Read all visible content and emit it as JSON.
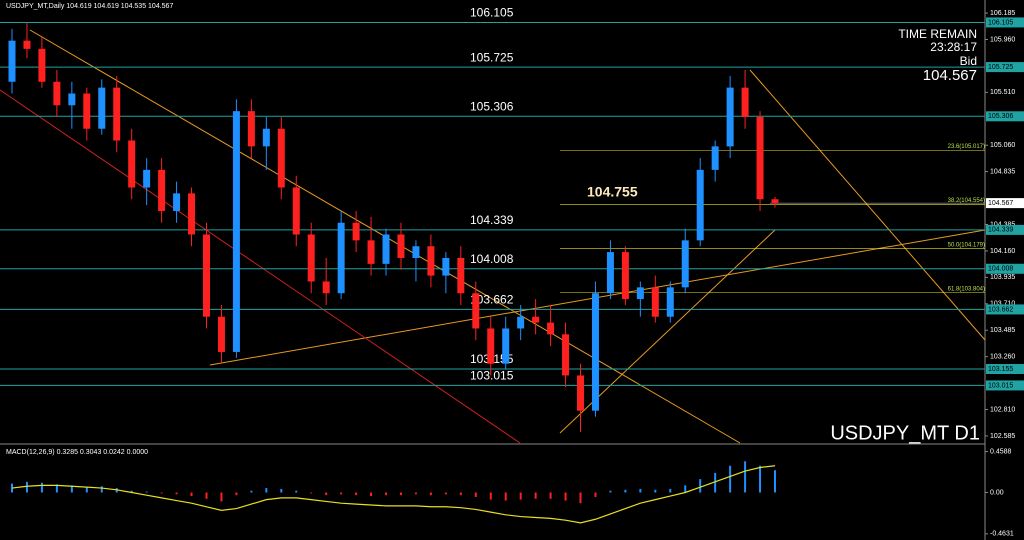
{
  "chart_data": {
    "type": "candlestick",
    "title": "USDJPY_MT,Daily  104.619 104.619 104.535 104.567",
    "symbol_label": "USDJPY_MT D1",
    "time_remain_label": "TIME REMAIN",
    "time_remain": "23:28:17",
    "bid_label": "Bid",
    "bid": 104.567,
    "up_color": "#1e90ff",
    "down_color": "#ff2020",
    "level_color": "#1fa3a3",
    "ylim": [
      102.525,
      106.296
    ],
    "yticks": [
      {
        "value": 106.185,
        "label": "106.185"
      },
      {
        "value": 105.96,
        "label": "105.960"
      },
      {
        "value": 105.51,
        "label": "105.510"
      },
      {
        "value": 105.06,
        "label": "105.060"
      },
      {
        "value": 104.835,
        "label": "104.835"
      },
      {
        "value": 104.385,
        "label": "104.385"
      },
      {
        "value": 104.16,
        "label": "104.160"
      },
      {
        "value": 103.935,
        "label": "103.935"
      },
      {
        "value": 103.71,
        "label": "103.710"
      },
      {
        "value": 103.485,
        "label": "103.485"
      },
      {
        "value": 103.26,
        "label": "103.260"
      },
      {
        "value": 102.81,
        "label": "102.810"
      },
      {
        "value": 102.585,
        "label": "102.585"
      }
    ],
    "levels": [
      106.105,
      105.725,
      105.306,
      104.339,
      104.008,
      103.662,
      103.155,
      103.015
    ],
    "marker_price": 104.755,
    "fib_levels": [
      {
        "value": 105.017,
        "label": "23.6(105.017)"
      },
      {
        "value": 104.554,
        "label": "38.2(104.554)"
      },
      {
        "value": 104.179,
        "label": "50.0(104.179)"
      },
      {
        "value": 103.804,
        "label": "61.8(103.804)"
      }
    ],
    "open": [
      105.6,
      105.95,
      105.88,
      105.6,
      105.4,
      105.5,
      105.2,
      105.55,
      105.1,
      104.7,
      104.85,
      104.5,
      104.65,
      104.3,
      103.6,
      103.3,
      105.35,
      105.05,
      105.2,
      104.7,
      104.3,
      103.9,
      103.8,
      104.4,
      104.25,
      104.05,
      104.3,
      104.1,
      104.2,
      103.95,
      104.1,
      103.8,
      103.5,
      103.2,
      103.5,
      103.6,
      103.55,
      103.45,
      103.1,
      102.8,
      103.8,
      104.15,
      103.75,
      103.85,
      103.6,
      103.85,
      104.25,
      104.85,
      105.05,
      105.55,
      105.3,
      104.6
    ],
    "high": [
      106.05,
      106.1,
      105.98,
      105.7,
      105.6,
      105.55,
      105.62,
      105.65,
      105.2,
      104.95,
      104.95,
      104.75,
      104.7,
      104.4,
      103.7,
      105.45,
      105.45,
      105.3,
      105.3,
      104.8,
      104.4,
      104.1,
      104.5,
      104.5,
      104.45,
      104.35,
      104.4,
      104.25,
      104.3,
      104.15,
      104.2,
      103.9,
      103.6,
      103.6,
      103.7,
      103.75,
      103.7,
      103.55,
      103.2,
      103.9,
      104.25,
      104.2,
      103.9,
      103.95,
      103.9,
      104.35,
      104.95,
      105.1,
      105.65,
      105.7,
      105.35,
      104.62
    ],
    "low": [
      105.5,
      105.8,
      105.55,
      105.3,
      105.2,
      105.1,
      105.15,
      105.0,
      104.6,
      104.55,
      104.4,
      104.4,
      104.2,
      103.5,
      103.2,
      103.25,
      104.95,
      104.85,
      104.6,
      104.2,
      103.8,
      103.7,
      103.75,
      104.15,
      103.95,
      103.95,
      104.0,
      103.9,
      103.85,
      103.8,
      103.7,
      103.4,
      103.1,
      103.15,
      103.4,
      103.45,
      103.35,
      103.0,
      102.62,
      102.75,
      103.75,
      103.7,
      103.6,
      103.55,
      103.55,
      103.8,
      104.2,
      104.75,
      104.95,
      105.2,
      104.5,
      104.53
    ],
    "close": [
      105.95,
      105.88,
      105.6,
      105.4,
      105.5,
      105.2,
      105.55,
      105.1,
      104.7,
      104.85,
      104.5,
      104.65,
      104.3,
      103.6,
      103.3,
      105.35,
      105.05,
      105.2,
      104.7,
      104.3,
      103.9,
      103.8,
      104.4,
      104.25,
      104.05,
      104.3,
      104.1,
      104.2,
      103.95,
      104.1,
      103.8,
      103.5,
      103.2,
      103.5,
      103.6,
      103.55,
      103.45,
      103.1,
      102.8,
      103.8,
      104.15,
      103.75,
      103.85,
      103.6,
      103.85,
      104.25,
      104.85,
      105.05,
      105.55,
      105.3,
      104.6,
      104.567
    ],
    "macd": {
      "title": "MACD(12,26,9) 0.3285 0.3043 0.0242 0.0000",
      "ylim": [
        -0.51,
        0.51
      ],
      "yticks": [
        0.4588,
        {
          "value": 0,
          "label": "0.00"
        },
        -0.4631
      ],
      "histogram_up_color": "#1e90ff",
      "histogram_down_color": "#ff2020",
      "histogram": [
        0.1,
        0.12,
        0.11,
        0.09,
        0.08,
        0.06,
        0.07,
        0.05,
        0.02,
        0.01,
        -0.01,
        -0.02,
        -0.04,
        -0.07,
        -0.1,
        -0.03,
        0.02,
        0.05,
        0.04,
        0.02,
        -0.01,
        -0.03,
        -0.02,
        -0.03,
        -0.04,
        -0.03,
        -0.03,
        -0.02,
        -0.03,
        -0.02,
        -0.03,
        -0.05,
        -0.08,
        -0.09,
        -0.08,
        -0.07,
        -0.07,
        -0.09,
        -0.12,
        -0.05,
        0.02,
        0.03,
        0.04,
        0.03,
        0.04,
        0.08,
        0.15,
        0.22,
        0.3,
        0.35,
        0.3,
        0.25
      ],
      "signal_color": "#e8e020",
      "signal": [
        0.05,
        0.07,
        0.08,
        0.08,
        0.07,
        0.06,
        0.05,
        0.03,
        0.0,
        -0.03,
        -0.06,
        -0.09,
        -0.12,
        -0.16,
        -0.2,
        -0.18,
        -0.13,
        -0.08,
        -0.06,
        -0.06,
        -0.08,
        -0.1,
        -0.12,
        -0.13,
        -0.14,
        -0.15,
        -0.15,
        -0.15,
        -0.16,
        -0.16,
        -0.17,
        -0.19,
        -0.22,
        -0.25,
        -0.27,
        -0.28,
        -0.29,
        -0.31,
        -0.34,
        -0.3,
        -0.24,
        -0.18,
        -0.12,
        -0.08,
        -0.04,
        0.0,
        0.06,
        0.12,
        0.18,
        0.24,
        0.28,
        0.3
      ]
    }
  }
}
